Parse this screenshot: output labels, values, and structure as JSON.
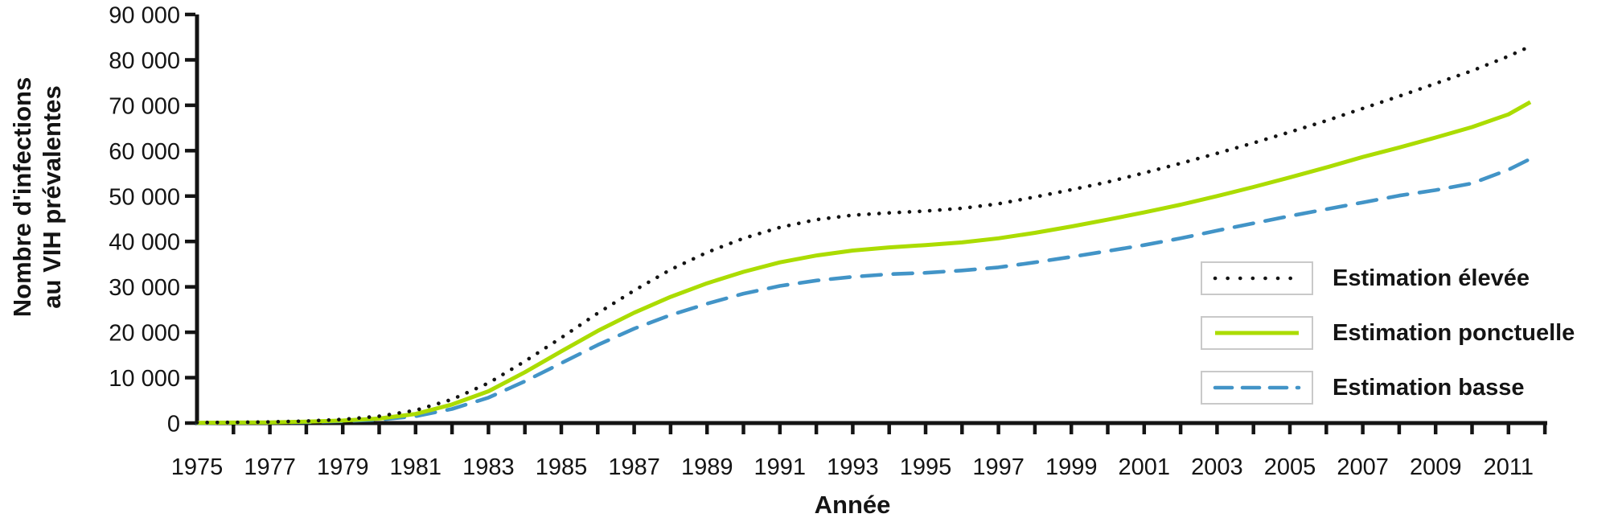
{
  "figure": {
    "y_axis_title_line1": "Nombre d'infections",
    "y_axis_title_line2": "au VIH prévalentes",
    "x_axis_title": "Année",
    "axis_color": "#141414",
    "background_color": "#ffffff",
    "legend_border_color": "#c9c9c9"
  },
  "legend": {
    "items": [
      {
        "id": "elevee",
        "label": "Estimation élevée",
        "style": "dotted",
        "color": "#141414"
      },
      {
        "id": "ponctuelle",
        "label": "Estimation ponctuelle",
        "style": "solid",
        "color": "#abdc00"
      },
      {
        "id": "basse",
        "label": "Estimation basse",
        "style": "dashed",
        "color": "#4294c7"
      }
    ]
  },
  "chart_data": {
    "type": "line",
    "title": "",
    "xlabel": "Année",
    "ylabel": "Nombre d'infections au VIH prévalentes",
    "xlim": [
      1975,
      2012
    ],
    "ylim": [
      0,
      90000
    ],
    "grid": false,
    "legend_position": "right-middle",
    "x_label_years": [
      1975,
      1977,
      1979,
      1981,
      1983,
      1985,
      1987,
      1989,
      1991,
      1993,
      1995,
      1997,
      1999,
      2001,
      2003,
      2005,
      2007,
      2009,
      2011
    ],
    "y_ticks": [
      0,
      10000,
      20000,
      30000,
      40000,
      50000,
      60000,
      70000,
      80000,
      90000
    ],
    "y_tick_labels": [
      "0",
      "10 000",
      "20 000",
      "30 000",
      "40 000",
      "50 000",
      "60 000",
      "70 000",
      "80 000",
      "90 000"
    ],
    "x": [
      1975,
      1976,
      1977,
      1978,
      1979,
      1980,
      1981,
      1982,
      1983,
      1984,
      1985,
      1986,
      1987,
      1988,
      1989,
      1990,
      1991,
      1992,
      1993,
      1994,
      1995,
      1996,
      1997,
      1998,
      1999,
      2000,
      2001,
      2002,
      2003,
      2004,
      2005,
      2006,
      2007,
      2008,
      2009,
      2010,
      2011,
      2011.6
    ],
    "series": [
      {
        "id": "basse",
        "name": "Estimation basse",
        "style": "dashed",
        "color": "#4294c7",
        "values": [
          0,
          50,
          100,
          200,
          400,
          750,
          1500,
          3100,
          5600,
          9200,
          13200,
          17200,
          20800,
          23800,
          26300,
          28500,
          30200,
          31400,
          32200,
          32800,
          33100,
          33600,
          34300,
          35400,
          36600,
          37900,
          39200,
          40700,
          42400,
          44000,
          45600,
          47100,
          48600,
          50100,
          51300,
          52800,
          55800,
          58200
        ]
      },
      {
        "id": "ponctuelle",
        "name": "Estimation ponctuelle",
        "style": "solid",
        "color": "#abdc00",
        "values": [
          50,
          100,
          150,
          300,
          550,
          1000,
          2000,
          4100,
          7000,
          11200,
          15800,
          20300,
          24300,
          27800,
          30800,
          33300,
          35400,
          36900,
          38000,
          38700,
          39200,
          39800,
          40700,
          41900,
          43300,
          44800,
          46400,
          48100,
          50000,
          52000,
          54100,
          56300,
          58600,
          60700,
          62900,
          65200,
          68000,
          70700
        ]
      },
      {
        "id": "elevee",
        "name": "Estimation élevée",
        "style": "dotted",
        "color": "#141414",
        "values": [
          100,
          150,
          250,
          450,
          800,
          1500,
          2800,
          5200,
          8800,
          13600,
          18800,
          24200,
          29200,
          33800,
          37600,
          40700,
          43100,
          44800,
          45800,
          46300,
          46700,
          47300,
          48300,
          49800,
          51400,
          53100,
          55100,
          57200,
          59400,
          61700,
          64100,
          66600,
          69300,
          72000,
          74800,
          77600,
          80800,
          83000
        ]
      }
    ]
  }
}
